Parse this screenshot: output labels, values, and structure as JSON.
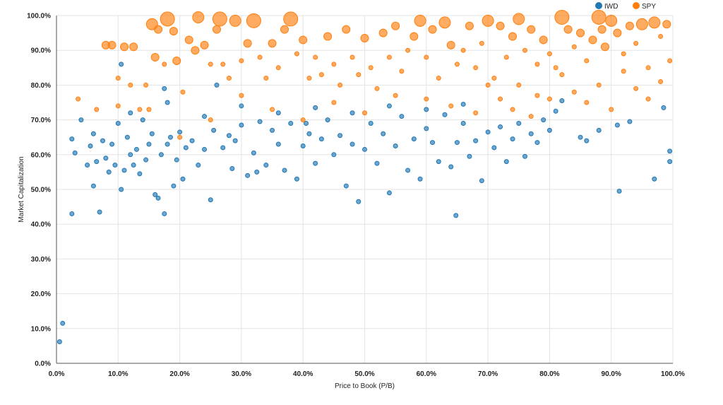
{
  "chart_data": {
    "type": "scatter",
    "title": "",
    "xlabel": "Price to Book (P/B)",
    "ylabel": "Market Capitalization",
    "xlim": [
      0,
      100
    ],
    "ylim": [
      0,
      100
    ],
    "x_ticks": [
      "0.0%",
      "10.0%",
      "20.0%",
      "30.0%",
      "40.0%",
      "50.0%",
      "60.0%",
      "70.0%",
      "80.0%",
      "90.0%",
      "100.0%"
    ],
    "y_ticks": [
      "0.0%",
      "10.0%",
      "20.0%",
      "30.0%",
      "40.0%",
      "50.0%",
      "60.0%",
      "70.0%",
      "80.0%",
      "90.0%",
      "100.0%"
    ],
    "grid": true,
    "legend_position": "top-right",
    "series": [
      {
        "name": "IWD",
        "color": "#1f77b4",
        "points": [
          [
            0.5,
            6.2,
            1
          ],
          [
            1.0,
            11.5,
            1
          ],
          [
            2.5,
            43,
            1
          ],
          [
            2.5,
            64.5,
            1
          ],
          [
            4,
            70,
            1
          ],
          [
            5,
            57,
            1
          ],
          [
            5.5,
            62.5,
            1
          ],
          [
            6,
            51,
            1
          ],
          [
            6.5,
            58,
            1
          ],
          [
            7,
            43.5,
            1
          ],
          [
            7.5,
            64,
            1
          ],
          [
            8,
            59,
            1
          ],
          [
            8.5,
            55,
            1
          ],
          [
            9,
            63,
            1
          ],
          [
            9.5,
            57,
            1
          ],
          [
            10,
            69,
            1
          ],
          [
            10.5,
            50,
            1
          ],
          [
            11,
            55.5,
            1
          ],
          [
            11.5,
            65,
            1
          ],
          [
            12,
            60,
            1
          ],
          [
            12.5,
            57,
            1
          ],
          [
            13,
            61.5,
            1
          ],
          [
            13.5,
            54.5,
            1
          ],
          [
            14,
            70,
            1
          ],
          [
            14.5,
            58.5,
            1
          ],
          [
            15,
            63,
            1
          ],
          [
            15.5,
            66,
            1
          ],
          [
            16,
            48.5,
            1
          ],
          [
            16.5,
            47.5,
            1
          ],
          [
            17,
            60,
            1
          ],
          [
            17.5,
            43,
            1
          ],
          [
            18,
            63,
            1
          ],
          [
            18.5,
            65,
            1
          ],
          [
            19,
            51,
            1
          ],
          [
            19.5,
            58.5,
            1
          ],
          [
            20,
            66.5,
            1
          ],
          [
            20.5,
            53,
            1
          ],
          [
            21,
            62,
            1
          ],
          [
            22,
            64,
            1
          ],
          [
            23,
            57,
            1
          ],
          [
            24,
            61.5,
            1
          ],
          [
            25,
            47,
            1
          ],
          [
            25.5,
            67,
            1
          ],
          [
            26,
            80,
            1
          ],
          [
            27,
            62,
            1
          ],
          [
            28,
            65.5,
            1
          ],
          [
            28.5,
            56,
            1
          ],
          [
            29,
            64,
            1
          ],
          [
            30,
            68.5,
            1
          ],
          [
            31,
            54,
            1
          ],
          [
            32,
            60.5,
            1
          ],
          [
            32.5,
            55,
            1
          ],
          [
            33,
            69.5,
            1
          ],
          [
            34,
            57,
            1
          ],
          [
            35,
            67,
            1
          ],
          [
            36,
            63,
            1
          ],
          [
            37,
            55.5,
            1
          ],
          [
            38,
            69,
            1
          ],
          [
            39,
            53,
            1
          ],
          [
            40,
            62.5,
            1
          ],
          [
            40.5,
            69,
            1
          ],
          [
            41,
            66,
            1
          ],
          [
            42,
            57.5,
            1
          ],
          [
            43,
            64.5,
            1
          ],
          [
            44,
            70,
            1
          ],
          [
            45,
            60,
            1
          ],
          [
            46,
            65.5,
            1
          ],
          [
            47,
            51,
            1
          ],
          [
            48,
            63,
            1
          ],
          [
            49,
            46.5,
            1
          ],
          [
            50,
            61.5,
            1
          ],
          [
            51,
            69,
            1
          ],
          [
            52,
            57.5,
            1
          ],
          [
            53,
            66,
            1
          ],
          [
            54,
            49,
            1
          ],
          [
            55,
            62.5,
            1
          ],
          [
            56,
            71,
            1
          ],
          [
            57,
            55.5,
            1
          ],
          [
            58,
            64.5,
            1
          ],
          [
            59,
            53,
            1
          ],
          [
            60,
            67.5,
            1
          ],
          [
            61,
            63.5,
            1
          ],
          [
            62,
            58,
            1
          ],
          [
            63,
            71.5,
            1
          ],
          [
            64,
            56.5,
            1
          ],
          [
            64.8,
            42.5,
            1
          ],
          [
            65,
            63.5,
            1
          ],
          [
            66,
            69,
            1
          ],
          [
            67,
            59.5,
            1
          ],
          [
            68,
            64,
            1
          ],
          [
            69,
            52.5,
            1
          ],
          [
            70,
            66.5,
            1
          ],
          [
            71,
            62,
            1
          ],
          [
            72,
            68,
            1
          ],
          [
            73,
            58,
            1
          ],
          [
            74,
            64.5,
            1
          ],
          [
            75,
            69,
            1
          ],
          [
            76,
            59.5,
            1
          ],
          [
            77,
            66,
            1
          ],
          [
            78,
            63.5,
            1
          ],
          [
            79,
            70,
            1
          ],
          [
            80,
            67,
            1
          ],
          [
            81,
            72.5,
            1
          ],
          [
            82,
            75.5,
            1
          ],
          [
            85,
            65,
            1
          ],
          [
            86,
            64,
            1
          ],
          [
            88,
            67,
            1
          ],
          [
            91,
            68.5,
            1
          ],
          [
            91.3,
            49.5,
            1
          ],
          [
            93,
            69.5,
            1
          ],
          [
            97,
            53,
            1
          ],
          [
            98.5,
            73.5,
            1
          ],
          [
            99.5,
            61,
            1
          ],
          [
            99.5,
            58,
            1
          ],
          [
            3,
            60.5,
            1
          ],
          [
            6,
            66,
            1
          ],
          [
            12,
            72,
            1
          ],
          [
            18,
            75,
            1
          ],
          [
            24,
            71,
            1
          ],
          [
            30,
            74,
            1
          ],
          [
            36,
            72,
            1
          ],
          [
            42,
            73.5,
            1
          ],
          [
            48,
            72,
            1
          ],
          [
            54,
            74,
            1
          ],
          [
            60,
            73,
            1
          ],
          [
            66,
            74.5,
            1
          ],
          [
            10.5,
            86,
            1
          ],
          [
            17.5,
            79,
            1
          ]
        ]
      },
      {
        "name": "SPY",
        "color": "#ff7f0e",
        "points": [
          [
            3.5,
            76,
            1
          ],
          [
            6.5,
            73,
            1
          ],
          [
            8,
            91.5,
            2
          ],
          [
            9,
            91.5,
            2
          ],
          [
            10,
            82,
            1
          ],
          [
            11,
            91,
            2
          ],
          [
            12,
            80,
            1
          ],
          [
            12.5,
            91,
            2
          ],
          [
            13.5,
            73,
            1
          ],
          [
            14.5,
            80,
            1
          ],
          [
            15.5,
            97.5,
            3
          ],
          [
            16,
            88,
            2
          ],
          [
            16.5,
            96,
            2
          ],
          [
            17.5,
            86,
            1
          ],
          [
            18,
            99,
            4
          ],
          [
            19,
            95.5,
            2
          ],
          [
            19.5,
            87,
            2
          ],
          [
            20.5,
            78,
            1
          ],
          [
            21.5,
            93,
            2
          ],
          [
            22.5,
            90,
            2
          ],
          [
            23,
            99.5,
            3
          ],
          [
            24,
            91.5,
            2
          ],
          [
            25,
            86,
            1
          ],
          [
            26,
            96,
            2
          ],
          [
            26.5,
            99,
            4
          ],
          [
            27,
            86,
            1
          ],
          [
            28,
            82,
            1
          ],
          [
            29,
            98.5,
            3
          ],
          [
            30,
            87,
            1
          ],
          [
            31,
            92,
            2
          ],
          [
            32,
            98.5,
            4
          ],
          [
            33,
            88,
            1
          ],
          [
            34,
            82,
            1
          ],
          [
            35,
            92,
            2
          ],
          [
            36,
            85,
            1
          ],
          [
            37,
            96,
            2
          ],
          [
            38,
            99,
            4
          ],
          [
            39,
            89,
            1
          ],
          [
            40,
            93,
            2
          ],
          [
            41,
            82,
            1
          ],
          [
            42,
            88,
            1
          ],
          [
            43,
            83,
            1
          ],
          [
            44,
            94,
            2
          ],
          [
            45,
            86,
            1
          ],
          [
            46,
            80,
            1
          ],
          [
            47,
            96,
            2
          ],
          [
            48,
            88,
            1
          ],
          [
            49,
            83,
            1
          ],
          [
            50,
            93.5,
            2
          ],
          [
            51,
            85,
            1
          ],
          [
            52,
            79,
            1
          ],
          [
            53,
            95,
            2
          ],
          [
            54,
            88,
            1
          ],
          [
            55,
            97,
            2
          ],
          [
            56,
            84,
            1
          ],
          [
            57,
            90,
            1
          ],
          [
            58,
            94,
            2
          ],
          [
            59,
            98.5,
            3
          ],
          [
            60,
            88,
            1
          ],
          [
            61,
            96,
            2
          ],
          [
            62,
            82,
            1
          ],
          [
            63,
            98,
            3
          ],
          [
            64,
            91.5,
            2
          ],
          [
            65,
            86,
            1
          ],
          [
            66,
            90,
            1
          ],
          [
            67,
            97,
            2
          ],
          [
            68,
            85,
            1
          ],
          [
            69,
            92,
            1
          ],
          [
            70,
            98.5,
            3
          ],
          [
            71,
            82,
            1
          ],
          [
            72,
            97,
            2
          ],
          [
            73,
            88,
            1
          ],
          [
            74,
            94,
            2
          ],
          [
            75,
            99,
            3
          ],
          [
            76,
            90,
            1
          ],
          [
            77,
            96,
            2
          ],
          [
            78,
            86,
            1
          ],
          [
            79,
            93,
            2
          ],
          [
            80,
            89,
            1
          ],
          [
            81,
            85,
            1
          ],
          [
            82,
            99.5,
            4
          ],
          [
            83,
            96,
            2
          ],
          [
            84,
            91,
            1
          ],
          [
            85,
            95,
            2
          ],
          [
            86,
            87,
            1
          ],
          [
            87,
            93,
            2
          ],
          [
            88,
            99.5,
            4
          ],
          [
            88.5,
            96,
            2
          ],
          [
            89,
            91,
            2
          ],
          [
            90,
            98.5,
            3
          ],
          [
            91,
            95,
            2
          ],
          [
            92,
            89,
            1
          ],
          [
            93,
            97,
            2
          ],
          [
            94,
            92,
            1
          ],
          [
            95,
            97.5,
            3
          ],
          [
            96,
            85,
            1
          ],
          [
            97,
            98,
            3
          ],
          [
            98,
            94,
            1
          ],
          [
            99,
            97.5,
            2
          ],
          [
            99.5,
            87,
            1
          ],
          [
            72,
            76,
            1
          ],
          [
            75,
            80,
            1
          ],
          [
            78,
            77,
            1
          ],
          [
            82,
            83,
            1
          ],
          [
            84,
            78,
            1
          ],
          [
            86,
            75,
            1
          ],
          [
            88,
            80,
            1
          ],
          [
            90,
            73,
            1
          ],
          [
            92,
            84,
            1
          ],
          [
            94,
            79,
            1
          ],
          [
            96,
            76,
            1
          ],
          [
            98,
            81,
            1
          ],
          [
            70,
            80,
            1
          ],
          [
            74,
            73,
            1
          ],
          [
            77,
            71,
            1
          ],
          [
            80,
            76,
            1
          ],
          [
            60,
            76,
            1
          ],
          [
            64,
            74,
            1
          ],
          [
            68,
            72,
            1
          ],
          [
            55,
            77,
            1
          ],
          [
            50,
            72,
            1
          ],
          [
            45,
            75,
            1
          ],
          [
            40,
            70,
            1
          ],
          [
            35,
            73,
            1
          ],
          [
            30,
            77,
            1
          ],
          [
            25,
            70,
            1
          ],
          [
            20,
            65,
            1
          ],
          [
            15,
            73,
            1
          ],
          [
            10,
            74,
            1
          ]
        ]
      }
    ]
  }
}
